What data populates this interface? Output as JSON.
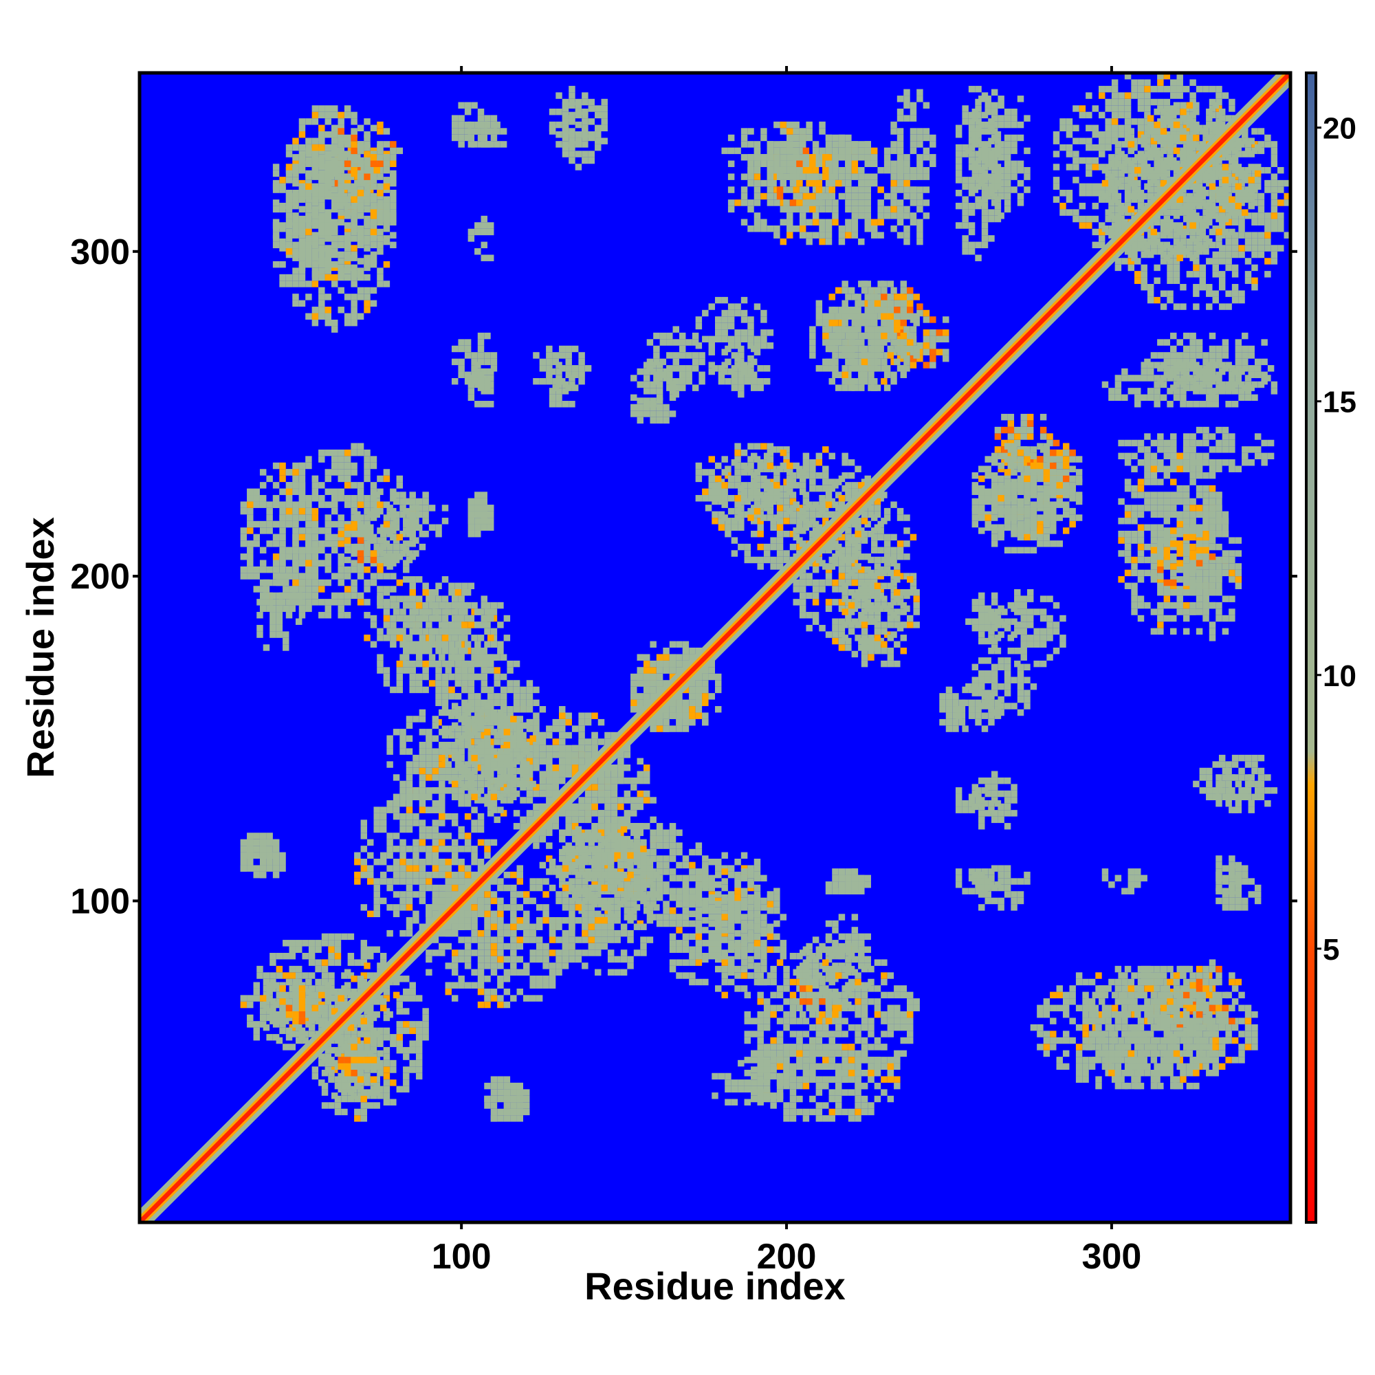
{
  "chart_data": {
    "type": "heatmap",
    "title": "",
    "xlabel": "Residue index",
    "ylabel": "Residue index",
    "xlim": [
      1,
      355
    ],
    "ylim": [
      1,
      355
    ],
    "x_ticks": [
      100,
      200,
      300
    ],
    "y_ticks": [
      100,
      200,
      300
    ],
    "x_tick_labels": [
      "100",
      "200",
      "300"
    ],
    "y_tick_labels": [
      "100",
      "200",
      "300"
    ],
    "colorbar": {
      "range": [
        0,
        21
      ],
      "ticks": [
        5,
        10,
        15,
        20
      ],
      "tick_labels": [
        "5",
        "10",
        "15",
        "20"
      ],
      "stops": [
        {
          "value": 0,
          "color": "#ff0000"
        },
        {
          "value": 5,
          "color": "#ff4a00"
        },
        {
          "value": 8,
          "color": "#ffa500"
        },
        {
          "value": 8.6,
          "color": "#a7b98f"
        },
        {
          "value": 16,
          "color": "#8fa9a0"
        },
        {
          "value": 21,
          "color": "#4060a0"
        }
      ],
      "background_color": "#0000ff"
    },
    "diagonal_color": "#ff2200",
    "near_color": "#ffa500",
    "far_color": "#9fb79a",
    "contact_regions": [
      {
        "x": [
          40,
          80
        ],
        "y": [
          290,
          335
        ],
        "level": "mid"
      },
      {
        "x": [
          55,
          75
        ],
        "y": [
          312,
          330
        ],
        "level": "near"
      },
      {
        "x": [
          100,
          115
        ],
        "y": [
          330,
          340
        ],
        "level": "far"
      },
      {
        "x": [
          125,
          140
        ],
        "y": [
          330,
          345
        ],
        "level": "far"
      },
      {
        "x": [
          180,
          225
        ],
        "y": [
          320,
          340
        ],
        "level": "mid"
      },
      {
        "x": [
          230,
          245
        ],
        "y": [
          300,
          350
        ],
        "level": "far"
      },
      {
        "x": [
          255,
          275
        ],
        "y": [
          310,
          350
        ],
        "level": "far"
      },
      {
        "x": [
          280,
          345
        ],
        "y": [
          295,
          355
        ],
        "level": "mid"
      },
      {
        "x": [
          210,
          240
        ],
        "y": [
          255,
          290
        ],
        "level": "mid"
      },
      {
        "x": [
          230,
          250
        ],
        "y": [
          262,
          282
        ],
        "level": "near"
      },
      {
        "x": [
          175,
          195
        ],
        "y": [
          255,
          270
        ],
        "level": "far"
      },
      {
        "x": [
          100,
          110
        ],
        "y": [
          250,
          265
        ],
        "level": "far"
      },
      {
        "x": [
          125,
          135
        ],
        "y": [
          250,
          265
        ],
        "level": "far"
      },
      {
        "x": [
          150,
          165
        ],
        "y": [
          250,
          265
        ],
        "level": "far"
      },
      {
        "x": [
          295,
          350
        ],
        "y": [
          250,
          265
        ],
        "level": "far"
      },
      {
        "x": [
          175,
          230
        ],
        "y": [
          200,
          240
        ],
        "level": "mid"
      },
      {
        "x": [
          215,
          240
        ],
        "y": [
          170,
          205
        ],
        "level": "mid"
      },
      {
        "x": [
          255,
          290
        ],
        "y": [
          205,
          240
        ],
        "level": "mid"
      },
      {
        "x": [
          275,
          290
        ],
        "y": [
          225,
          240
        ],
        "level": "near"
      },
      {
        "x": [
          300,
          335
        ],
        "y": [
          180,
          240
        ],
        "level": "mid"
      },
      {
        "x": [
          310,
          330
        ],
        "y": [
          195,
          215
        ],
        "level": "near"
      },
      {
        "x": [
          260,
          285
        ],
        "y": [
          170,
          195
        ],
        "level": "far"
      },
      {
        "x": [
          30,
          60
        ],
        "y": [
          185,
          235
        ],
        "level": "mid"
      },
      {
        "x": [
          65,
          90
        ],
        "y": [
          200,
          225
        ],
        "level": "far"
      },
      {
        "x": [
          75,
          115
        ],
        "y": [
          170,
          195
        ],
        "level": "mid"
      },
      {
        "x": [
          100,
          110
        ],
        "y": [
          210,
          225
        ],
        "level": "far"
      },
      {
        "x": [
          90,
          125
        ],
        "y": [
          130,
          175
        ],
        "level": "mid"
      },
      {
        "x": [
          120,
          160
        ],
        "y": [
          100,
          150
        ],
        "level": "mid"
      },
      {
        "x": [
          150,
          180
        ],
        "y": [
          150,
          180
        ],
        "level": "mid"
      },
      {
        "x": [
          65,
          110
        ],
        "y": [
          85,
          135
        ],
        "level": "mid"
      },
      {
        "x": [
          125,
          160
        ],
        "y": [
          75,
          125
        ],
        "level": "mid"
      },
      {
        "x": [
          160,
          200
        ],
        "y": [
          70,
          110
        ],
        "level": "mid"
      },
      {
        "x": [
          35,
          80
        ],
        "y": [
          50,
          90
        ],
        "level": "mid"
      },
      {
        "x": [
          55,
          75
        ],
        "y": [
          30,
          55
        ],
        "level": "mid"
      },
      {
        "x": [
          40,
          60
        ],
        "y": [
          60,
          75
        ],
        "level": "near"
      },
      {
        "x": [
          185,
          240
        ],
        "y": [
          40,
          85
        ],
        "level": "mid"
      },
      {
        "x": [
          200,
          215
        ],
        "y": [
          60,
          75
        ],
        "level": "near"
      },
      {
        "x": [
          175,
          200
        ],
        "y": [
          35,
          50
        ],
        "level": "far"
      },
      {
        "x": [
          105,
          120
        ],
        "y": [
          30,
          45
        ],
        "level": "far"
      },
      {
        "x": [
          275,
          345
        ],
        "y": [
          40,
          80
        ],
        "level": "mid"
      },
      {
        "x": [
          320,
          340
        ],
        "y": [
          60,
          80
        ],
        "level": "near"
      },
      {
        "x": [
          255,
          275
        ],
        "y": [
          155,
          175
        ],
        "level": "far"
      },
      {
        "x": [
          245,
          255
        ],
        "y": [
          150,
          165
        ],
        "level": "far"
      },
      {
        "x": [
          255,
          270
        ],
        "y": [
          120,
          140
        ],
        "level": "far"
      },
      {
        "x": [
          210,
          225
        ],
        "y": [
          100,
          110
        ],
        "level": "far"
      },
      {
        "x": [
          255,
          275
        ],
        "y": [
          95,
          110
        ],
        "level": "far"
      },
      {
        "x": [
          295,
          310
        ],
        "y": [
          100,
          110
        ],
        "level": "far"
      },
      {
        "x": [
          330,
          345
        ],
        "y": [
          95,
          110
        ],
        "level": "far"
      },
      {
        "x": [
          325,
          350
        ],
        "y": [
          125,
          145
        ],
        "level": "far"
      },
      {
        "x": [
          30,
          45
        ],
        "y": [
          105,
          120
        ],
        "level": "far"
      },
      {
        "x": [
          210,
          225
        ],
        "y": [
          80,
          95
        ],
        "level": "far"
      }
    ]
  }
}
